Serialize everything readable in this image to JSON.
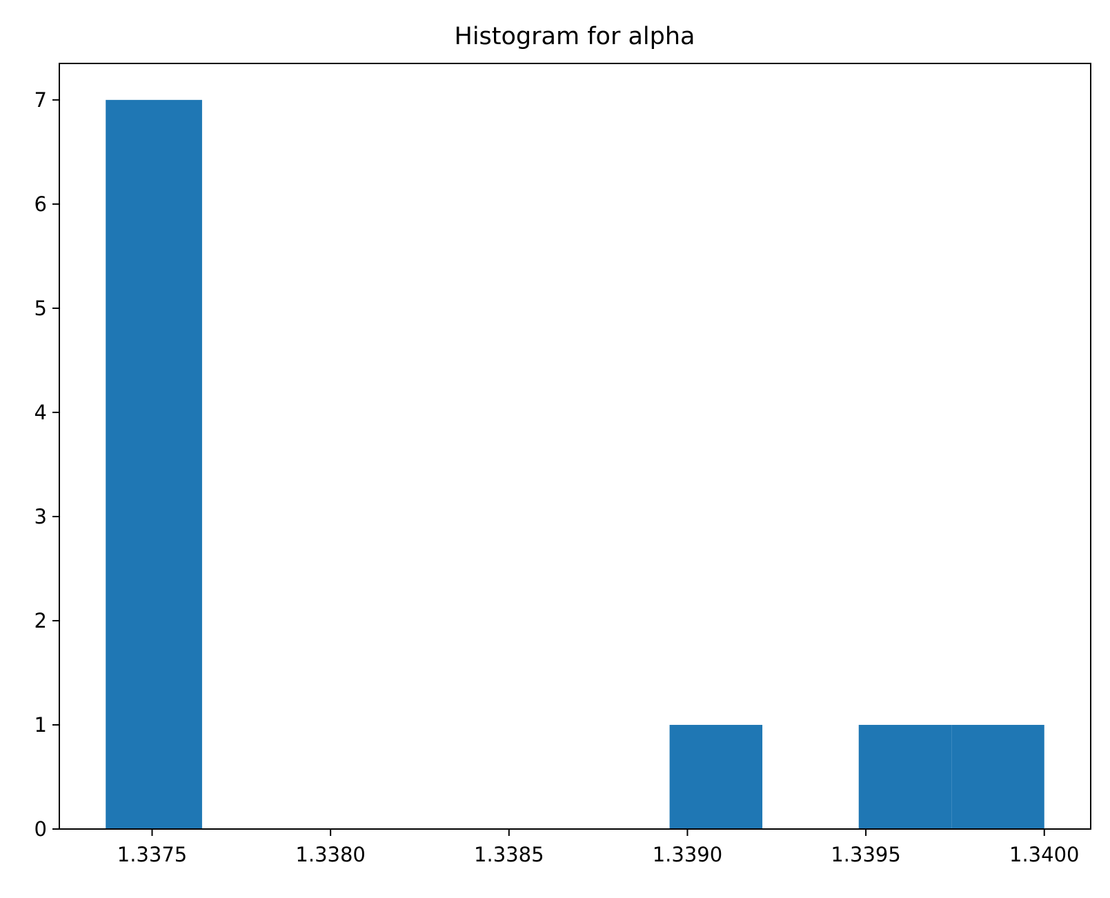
{
  "chart_data": {
    "type": "bar",
    "title": "Histogram for alpha",
    "xlabel": "",
    "ylabel": "",
    "bin_edges": [
      1.33737,
      1.33764,
      1.3379,
      1.33816,
      1.33843,
      1.33869,
      1.33895,
      1.33921,
      1.33948,
      1.33974,
      1.34
    ],
    "values": [
      7,
      0,
      0,
      0,
      0,
      0,
      1,
      0,
      1,
      1
    ],
    "xlim": [
      1.33724,
      1.34013
    ],
    "ylim": [
      0,
      7.35
    ],
    "x_ticks": [
      {
        "value": 1.3375,
        "label": "1.3375"
      },
      {
        "value": 1.338,
        "label": "1.3380"
      },
      {
        "value": 1.3385,
        "label": "1.3385"
      },
      {
        "value": 1.339,
        "label": "1.3390"
      },
      {
        "value": 1.3395,
        "label": "1.3395"
      },
      {
        "value": 1.34,
        "label": "1.3400"
      }
    ],
    "y_ticks": [
      {
        "value": 0,
        "label": "0"
      },
      {
        "value": 1,
        "label": "1"
      },
      {
        "value": 2,
        "label": "2"
      },
      {
        "value": 3,
        "label": "3"
      },
      {
        "value": 4,
        "label": "4"
      },
      {
        "value": 5,
        "label": "5"
      },
      {
        "value": 6,
        "label": "6"
      },
      {
        "value": 7,
        "label": "7"
      }
    ],
    "bar_color": "#1f77b4",
    "grid": false,
    "legend": "none"
  }
}
